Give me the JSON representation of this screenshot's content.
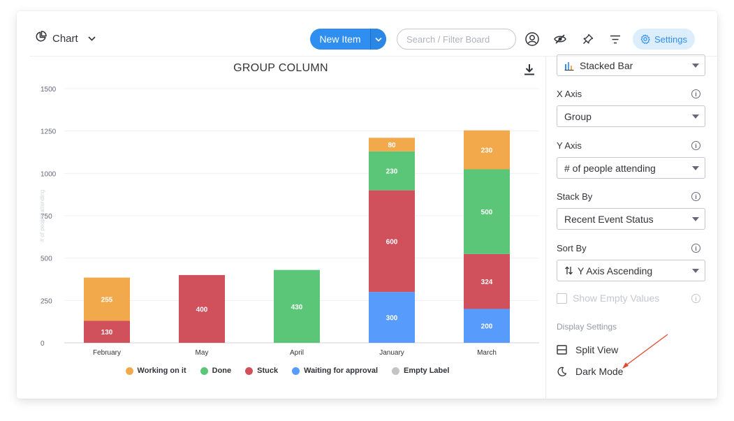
{
  "toolbar": {
    "view_label": "Chart",
    "new_item_label": "New Item",
    "search_placeholder": "Search / Filter Board",
    "settings_label": "Settings"
  },
  "chart_panel": {
    "heading": "GROUP COLUMN"
  },
  "chart_data": {
    "type": "bar",
    "stacked": true,
    "title": "GROUP COLUMN",
    "xlabel": "",
    "ylabel": "# of people attending",
    "ylim": [
      0,
      1500
    ],
    "yticks": [
      0,
      250,
      500,
      750,
      1000,
      1250,
      1500
    ],
    "grid": true,
    "legend_position": "bottom",
    "categories": [
      "February",
      "May",
      "April",
      "January",
      "March"
    ],
    "series": [
      {
        "name": "Waiting for approval",
        "color": "#579bfc",
        "values": [
          0,
          0,
          0,
          300,
          200
        ]
      },
      {
        "name": "Stuck",
        "color": "#d0505c",
        "values": [
          130,
          400,
          0,
          600,
          324
        ]
      },
      {
        "name": "Done",
        "color": "#5bc677",
        "values": [
          0,
          0,
          430,
          230,
          500
        ]
      },
      {
        "name": "Working on it",
        "color": "#f2a94b",
        "values": [
          255,
          0,
          0,
          80,
          230
        ]
      },
      {
        "name": "Empty Label",
        "color": "#c4c4c4",
        "values": [
          0,
          0,
          0,
          0,
          0
        ]
      }
    ],
    "legend_order": [
      "Working on it",
      "Done",
      "Stuck",
      "Waiting for approval",
      "Empty Label"
    ]
  },
  "settings_panel": {
    "chart_type": "Stacked Bar",
    "x_axis_label": "X Axis",
    "x_axis_value": "Group",
    "y_axis_label": "Y Axis",
    "y_axis_value": "# of people attending",
    "stack_by_label": "Stack By",
    "stack_by_value": "Recent Event Status",
    "sort_by_label": "Sort By",
    "sort_by_value": "Y Axis Ascending",
    "show_empty_label": "Show Empty Values",
    "display_settings_label": "Display Settings",
    "split_view_label": "Split View",
    "dark_mode_label": "Dark Mode"
  },
  "colors": {
    "accent": "#2f8ff0",
    "settings_bg": "#dcedfb",
    "annotation_arrow": "#e2492f"
  }
}
